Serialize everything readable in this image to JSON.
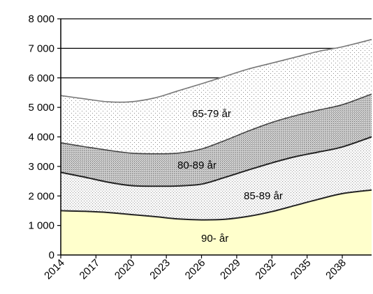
{
  "chart_data": {
    "type": "area",
    "stacked": true,
    "x": [
      2014,
      2017,
      2020,
      2023,
      2026,
      2029,
      2032,
      2035,
      2038
    ],
    "x_tick_labels": [
      "2014",
      "2017",
      "2020",
      "2023",
      "2026",
      "2029",
      "2032",
      "2035",
      "2038"
    ],
    "x_range": [
      2014,
      2040.5
    ],
    "ylim": [
      0,
      8000
    ],
    "y_ticks": [
      0,
      1000,
      2000,
      3000,
      4000,
      5000,
      6000,
      7000,
      8000
    ],
    "y_tick_labels": [
      "0",
      "1 000",
      "2 000",
      "3 000",
      "4 000",
      "5 000",
      "6 000",
      "7 000",
      "8 000"
    ],
    "grid": "horizontal",
    "legend": "none",
    "title": "",
    "xlabel": "",
    "ylabel": "",
    "series": [
      {
        "name": "90- år",
        "pattern": "plain",
        "color": "#ffffcc",
        "x": [
          2014,
          2016,
          2018,
          2020,
          2022,
          2024,
          2026,
          2028,
          2030,
          2032,
          2034,
          2036,
          2038,
          2040.5
        ],
        "values": [
          1500,
          1480,
          1440,
          1370,
          1300,
          1220,
          1190,
          1210,
          1310,
          1470,
          1680,
          1890,
          2080,
          2200
        ]
      },
      {
        "name": "85-89 år",
        "pattern": "light-dots",
        "color": "#eeeeee",
        "x": [
          2014,
          2016,
          2018,
          2020,
          2022,
          2024,
          2026,
          2028,
          2030,
          2032,
          2034,
          2036,
          2038,
          2040.5
        ],
        "values": [
          1300,
          1160,
          1030,
          980,
          1030,
          1120,
          1210,
          1420,
          1570,
          1650,
          1650,
          1600,
          1580,
          1800
        ]
      },
      {
        "name": "80-89 år",
        "pattern": "dense-dots",
        "color": "#cccccc",
        "x": [
          2014,
          2016,
          2018,
          2020,
          2022,
          2024,
          2026,
          2028,
          2030,
          2032,
          2034,
          2036,
          2038,
          2040.5
        ],
        "values": [
          1000,
          1030,
          1080,
          1100,
          1100,
          1110,
          1190,
          1250,
          1320,
          1370,
          1390,
          1420,
          1430,
          1450
        ]
      },
      {
        "name": "65-79 år",
        "pattern": "sparse-dots",
        "color": "#ffffff",
        "x": [
          2014,
          2016,
          2018,
          2020,
          2022,
          2024,
          2026,
          2028,
          2030,
          2032,
          2034,
          2036,
          2038,
          2040.5
        ],
        "values": [
          1600,
          1620,
          1640,
          1740,
          1890,
          2110,
          2210,
          2170,
          2100,
          2010,
          1980,
          1990,
          1960,
          1850
        ]
      }
    ],
    "annotations": [
      "65-79 år",
      "80-89 år",
      "85-89 år",
      "90- år"
    ]
  }
}
